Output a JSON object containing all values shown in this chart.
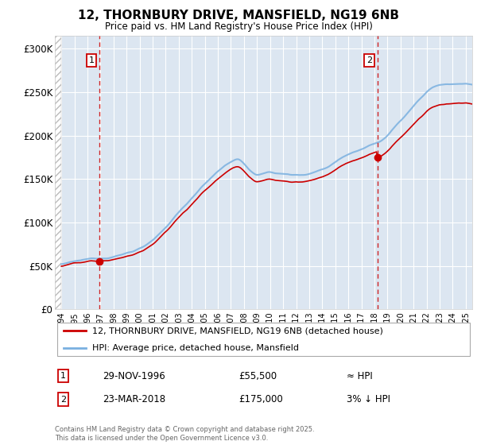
{
  "title": "12, THORNBURY DRIVE, MANSFIELD, NG19 6NB",
  "subtitle": "Price paid vs. HM Land Registry's House Price Index (HPI)",
  "hpi_color": "#7ab0e0",
  "price_color": "#cc0000",
  "sale1_date": 1996.91,
  "sale1_price": 55500,
  "sale2_date": 2018.22,
  "sale2_price": 175000,
  "ylim": [
    0,
    315000
  ],
  "xlim": [
    1993.5,
    2025.5
  ],
  "yticks": [
    0,
    50000,
    100000,
    150000,
    200000,
    250000,
    300000
  ],
  "ytick_labels": [
    "£0",
    "£50K",
    "£100K",
    "£150K",
    "£200K",
    "£250K",
    "£300K"
  ],
  "legend_label1": "12, THORNBURY DRIVE, MANSFIELD, NG19 6NB (detached house)",
  "legend_label2": "HPI: Average price, detached house, Mansfield",
  "note1_label": "1",
  "note1_date": "29-NOV-1996",
  "note1_price": "£55,500",
  "note1_hpi": "≈ HPI",
  "note2_label": "2",
  "note2_date": "23-MAR-2018",
  "note2_price": "£175,000",
  "note2_hpi": "3% ↓ HPI",
  "footer": "Contains HM Land Registry data © Crown copyright and database right 2025.\nThis data is licensed under the Open Government Licence v3.0.",
  "bg_color": "#dce6f1",
  "hatch_start": 1993.5,
  "hatch_end": 1994.0
}
